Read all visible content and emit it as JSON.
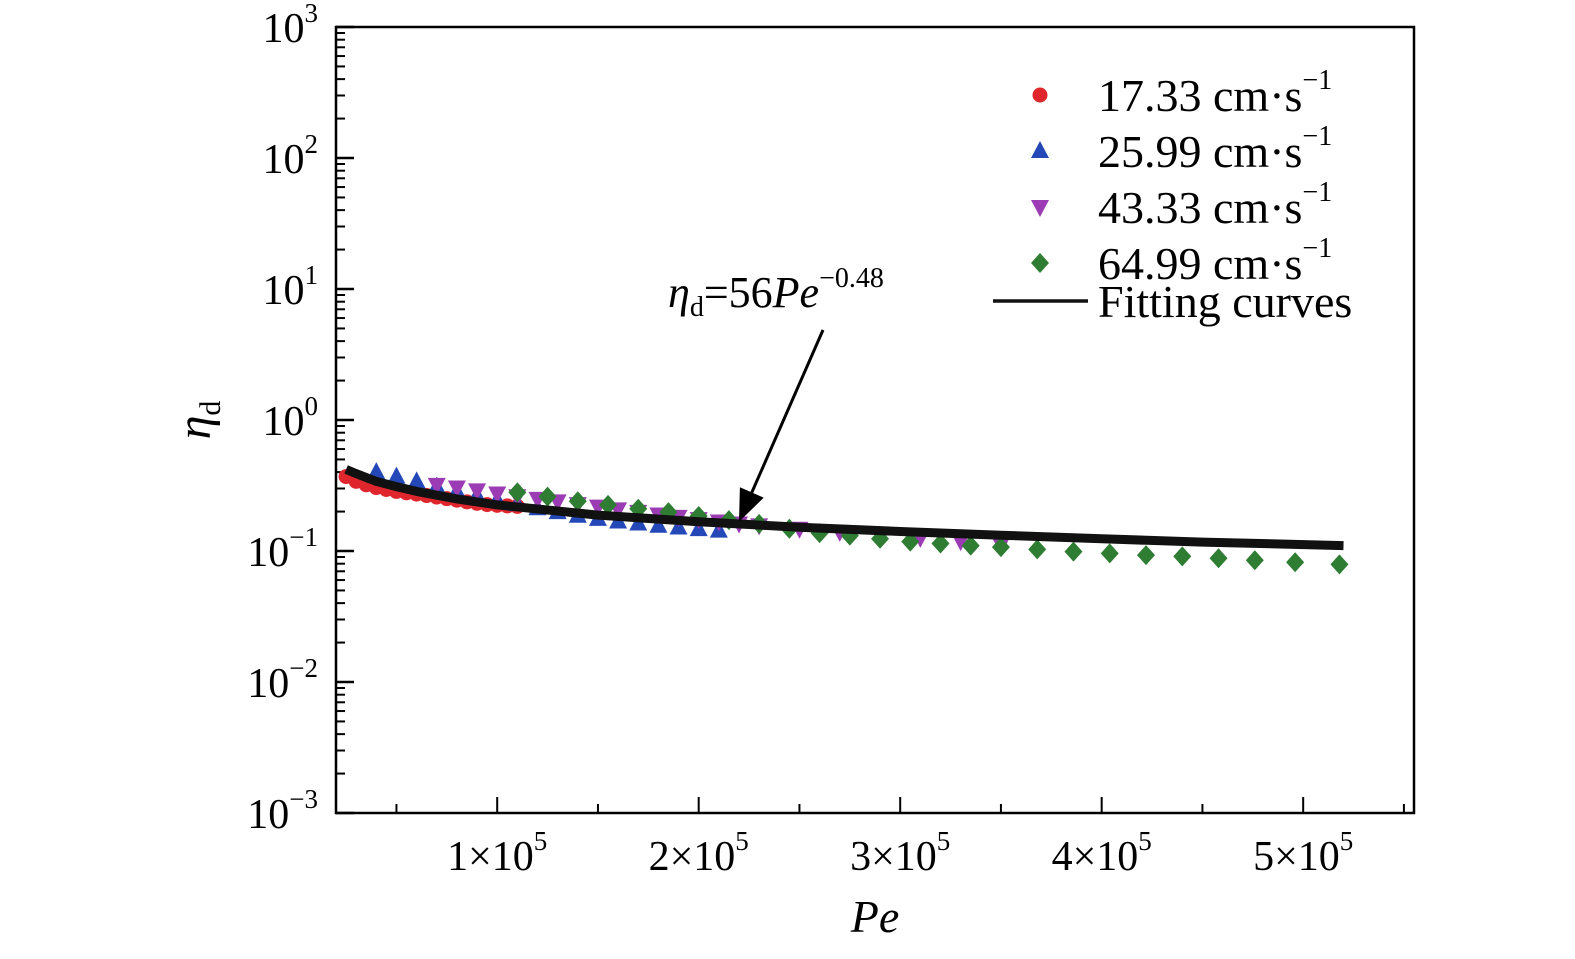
{
  "chart_data": {
    "type": "scatter",
    "title": "",
    "xlabel": "Pe",
    "ylabel": {
      "symbol": "η",
      "subscript": "d"
    },
    "x_scale": "linear",
    "y_scale": "log",
    "xlim": [
      20000,
      555000
    ],
    "ylim": [
      0.001,
      1000
    ],
    "x_ticks": [
      {
        "value": 100000,
        "mantissa": "1×10",
        "exp": "5"
      },
      {
        "value": 200000,
        "mantissa": "2×10",
        "exp": "5"
      },
      {
        "value": 300000,
        "mantissa": "3×10",
        "exp": "5"
      },
      {
        "value": 400000,
        "mantissa": "4×10",
        "exp": "5"
      },
      {
        "value": 500000,
        "mantissa": "5×10",
        "exp": "5"
      }
    ],
    "y_ticks": [
      {
        "value": 0.001,
        "base": "10",
        "exp": "−3"
      },
      {
        "value": 0.01,
        "base": "10",
        "exp": "−2"
      },
      {
        "value": 0.1,
        "base": "10",
        "exp": "−1"
      },
      {
        "value": 1,
        "base": "10",
        "exp": "0"
      },
      {
        "value": 10,
        "base": "10",
        "exp": "1"
      },
      {
        "value": 100,
        "base": "10",
        "exp": "2"
      },
      {
        "value": 1000,
        "base": "10",
        "exp": "3"
      }
    ],
    "legend_position": "top-right",
    "series": [
      {
        "name": "17.33 cm·s",
        "name_sup": "−1",
        "marker": "circle",
        "color": "#e0262d",
        "x": [
          25000,
          30000,
          35000,
          40000,
          45000,
          50000,
          55000,
          60000,
          65000,
          70000,
          75000,
          80000,
          85000,
          90000,
          95000,
          100000,
          105000,
          110000
        ],
        "y": [
          0.37,
          0.34,
          0.32,
          0.305,
          0.295,
          0.285,
          0.278,
          0.272,
          0.265,
          0.258,
          0.251,
          0.244,
          0.237,
          0.231,
          0.226,
          0.223,
          0.221,
          0.219
        ]
      },
      {
        "name": "25.99 cm·s",
        "name_sup": "−1",
        "marker": "triangle-up",
        "color": "#2448b8",
        "x": [
          40000,
          50000,
          60000,
          70000,
          80000,
          90000,
          100000,
          110000,
          120000,
          130000,
          140000,
          150000,
          160000,
          170000,
          180000,
          190000,
          200000,
          210000
        ],
        "y": [
          0.4,
          0.37,
          0.34,
          0.31,
          0.285,
          0.265,
          0.245,
          0.228,
          0.212,
          0.198,
          0.186,
          0.176,
          0.168,
          0.162,
          0.156,
          0.151,
          0.147,
          0.143
        ]
      },
      {
        "name": "43.33 cm·s",
        "name_sup": "−1",
        "marker": "triangle-down",
        "color": "#9c3cb4",
        "x": [
          70000,
          80000,
          90000,
          100000,
          110000,
          120000,
          130000,
          140000,
          150000,
          160000,
          170000,
          180000,
          190000,
          200000,
          210000,
          220000,
          230000,
          250000,
          270000,
          290000,
          310000,
          330000,
          350000
        ],
        "y": [
          0.32,
          0.305,
          0.29,
          0.275,
          0.262,
          0.25,
          0.239,
          0.228,
          0.218,
          0.208,
          0.199,
          0.19,
          0.182,
          0.175,
          0.168,
          0.162,
          0.157,
          0.148,
          0.14,
          0.133,
          0.126,
          0.119,
          0.112
        ]
      },
      {
        "name": "64.99 cm·s",
        "name_sup": "−1",
        "marker": "diamond",
        "color": "#2e7d32",
        "x": [
          110000,
          125000,
          140000,
          155000,
          170000,
          185000,
          200000,
          215000,
          230000,
          245000,
          260000,
          275000,
          290000,
          305000,
          320000,
          335000,
          350000,
          368000,
          386000,
          404000,
          422000,
          440000,
          458000,
          476000,
          496000,
          518000
        ],
        "y": [
          0.28,
          0.26,
          0.24,
          0.225,
          0.21,
          0.198,
          0.185,
          0.172,
          0.161,
          0.148,
          0.137,
          0.131,
          0.124,
          0.118,
          0.114,
          0.11,
          0.107,
          0.103,
          0.099,
          0.096,
          0.093,
          0.091,
          0.088,
          0.085,
          0.082,
          0.079
        ]
      },
      {
        "name": "Fitting curves",
        "marker": "line",
        "color": "#111111",
        "x": [
          25000,
          30000,
          40000,
          50000,
          60000,
          80000,
          100000,
          150000,
          200000,
          250000,
          300000,
          350000,
          400000,
          450000,
          520000
        ],
        "y": [
          0.42,
          0.39,
          0.34,
          0.31,
          0.285,
          0.25,
          0.225,
          0.188,
          0.167,
          0.152,
          0.141,
          0.132,
          0.124,
          0.117,
          0.11
        ]
      }
    ],
    "annotation": {
      "symbol": "η",
      "subscript": "d",
      "text": "=56",
      "italic": "Pe",
      "sup": "−0.48",
      "points_to": {
        "x": 220000,
        "y": 0.167
      }
    }
  }
}
